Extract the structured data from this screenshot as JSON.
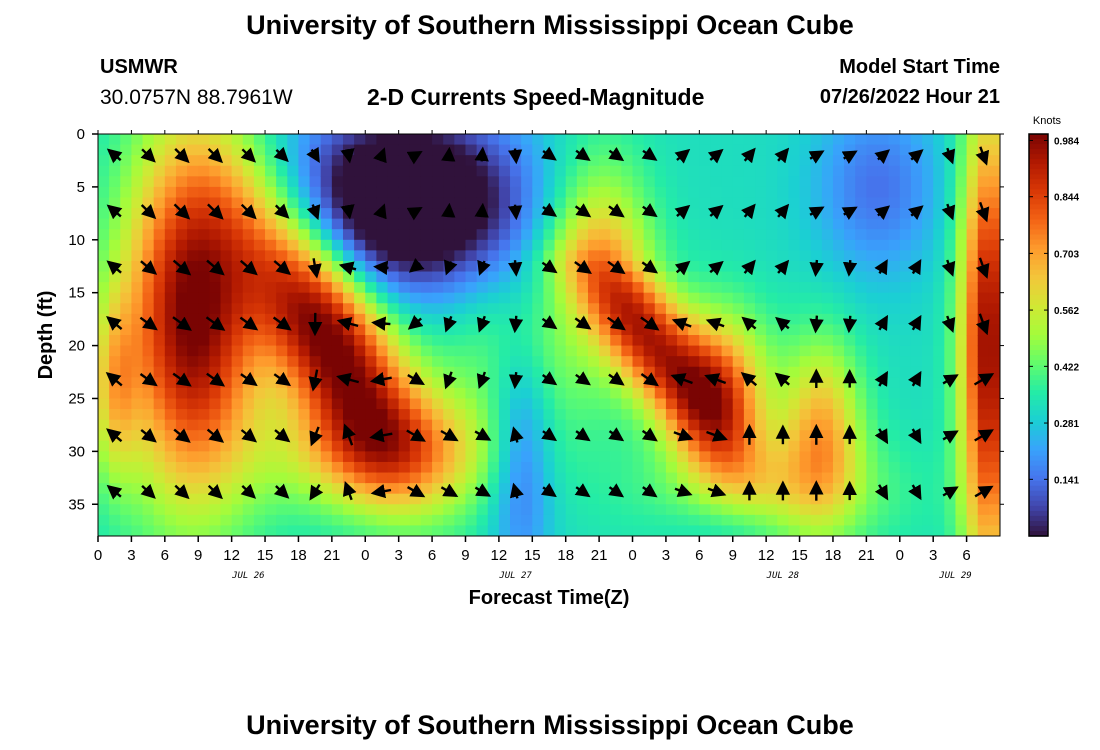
{
  "header": {
    "title": "University of Southern Mississippi Ocean Cube",
    "station": "USMWR",
    "coords": "30.0757N  88.7961W",
    "subtitle": "2-D Currents Speed-Magnitude",
    "model_start_label": "Model Start Time",
    "model_start_time": "07/26/2022 Hour 21"
  },
  "footer": {
    "title": "University of Southern Mississippi Ocean Cube"
  },
  "chart_data": {
    "type": "heatmap",
    "title": "2-D Currents Speed-Magnitude",
    "xlabel": "Forecast Time(Z)",
    "ylabel": "Depth (ft)",
    "x_tick_labels": [
      "0",
      "3",
      "6",
      "9",
      "12",
      "15",
      "18",
      "21",
      "0",
      "3",
      "6",
      "9",
      "12",
      "15",
      "18",
      "21",
      "0",
      "3",
      "6",
      "9",
      "12",
      "15",
      "18",
      "21",
      "0",
      "3",
      "6"
    ],
    "x_date_labels": [
      "JUL 26",
      "JUL 27",
      "JUL 28",
      "JUL 29"
    ],
    "x_range_hours": [
      0,
      81
    ],
    "y_tick_labels": [
      "0",
      "5",
      "10",
      "15",
      "20",
      "25",
      "30",
      "35"
    ],
    "ylim": [
      0,
      38
    ],
    "y_inverted": true,
    "colorbar": {
      "label": "Knots",
      "tick_labels": [
        "0.984",
        "0.844",
        "0.703",
        "0.562",
        "0.422",
        "0.281",
        "0.141"
      ],
      "range": [
        0,
        1.0
      ],
      "colors": [
        "#30123b",
        "#4145ab",
        "#4675ed",
        "#39a2fc",
        "#1bcfd4",
        "#24eca6",
        "#61fc6c",
        "#a4fc3b",
        "#d1e834",
        "#f3c63a",
        "#fe9b2d",
        "#f36315",
        "#d93806",
        "#b11901",
        "#7a0403"
      ]
    },
    "speed_peaks_knots": [
      {
        "label": "JUL 26 06-12Z, 10-28 ft",
        "value": 0.95
      },
      {
        "label": "JUL 27 18Z-JUL 28 03Z, 15-28 ft",
        "value": 0.95
      },
      {
        "label": "JUL 29 03-06Z",
        "value": 0.9
      }
    ],
    "speed_minimum_knots": {
      "label": "JUL 27 00-06Z, 0-12 ft",
      "value": 0.05
    }
  }
}
